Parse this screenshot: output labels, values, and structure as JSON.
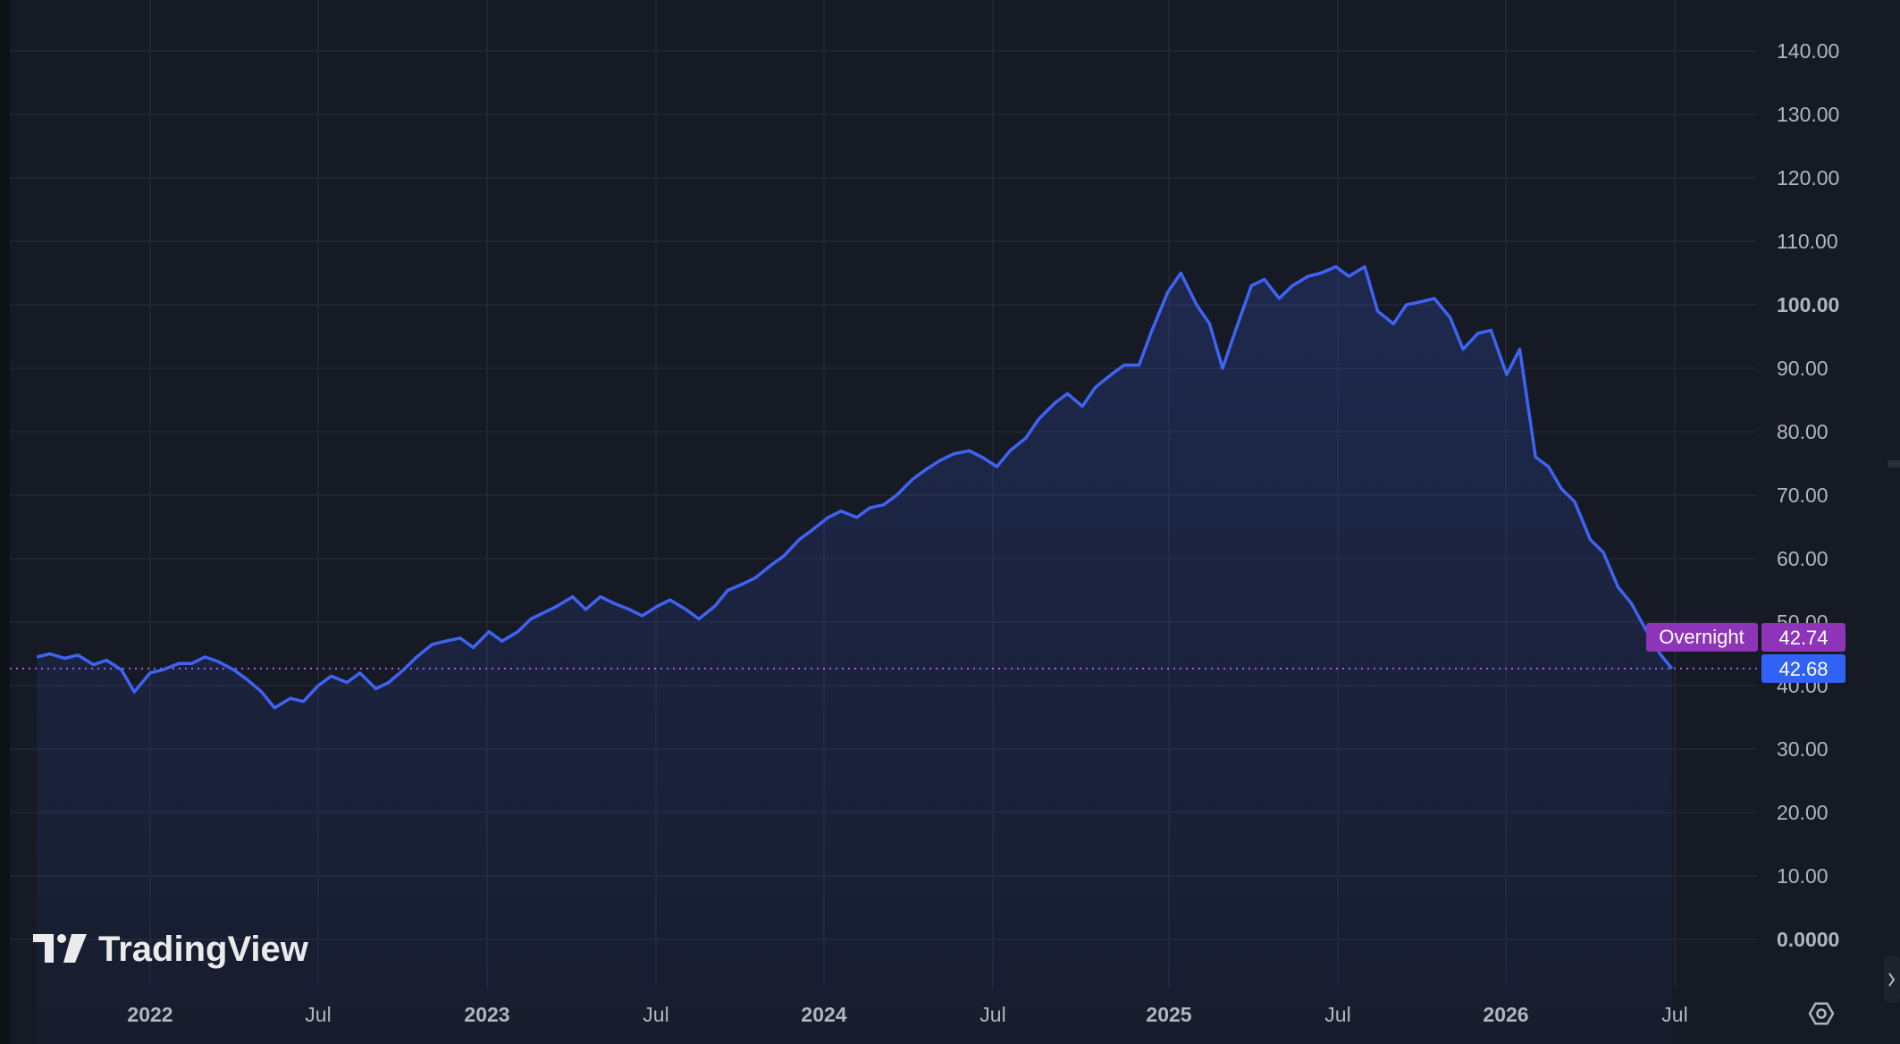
{
  "app": {
    "watermark": "TradingView"
  },
  "colors": {
    "background": "#161a25",
    "grid": "#222735",
    "line": "#3f63f2",
    "area_fill_top": "rgba(63,99,242,0.20)",
    "area_fill_bottom": "rgba(63,99,242,0.04)",
    "axis_text": "#b2b5be",
    "overnight_badge": "#8e34b8",
    "last_price_badge": "#2f62f5",
    "dotted_line": "#9c5ce8"
  },
  "chart_data": {
    "type": "area",
    "x_tick_labels": [
      "2022",
      "Jul",
      "2023",
      "Jul",
      "2024",
      "Jul",
      "2025",
      "Jul",
      "2026",
      "Jul"
    ],
    "x_tick_major": [
      true,
      false,
      true,
      false,
      true,
      false,
      true,
      false,
      true,
      false
    ],
    "y_tick_labels": [
      "0.0000",
      "10.00",
      "20.00",
      "30.00",
      "40.00",
      "50.00",
      "60.00",
      "70.00",
      "80.00",
      "90.00",
      "100.00",
      "110.00",
      "120.00",
      "130.00",
      "140.00"
    ],
    "ylim": [
      0,
      140
    ],
    "xlim": [
      "2021-09-01",
      "2026-10-15"
    ],
    "grid": true,
    "series": [
      {
        "type": "area",
        "x": [
          "2021-09-01",
          "2021-09-15",
          "2021-10-01",
          "2021-10-15",
          "2021-11-01",
          "2021-11-15",
          "2021-12-01",
          "2021-12-15",
          "2022-01-01",
          "2022-01-15",
          "2022-02-01",
          "2022-02-15",
          "2022-03-01",
          "2022-03-15",
          "2022-04-01",
          "2022-04-15",
          "2022-05-01",
          "2022-05-15",
          "2022-06-01",
          "2022-06-15",
          "2022-07-01",
          "2022-07-15",
          "2022-08-01",
          "2022-08-15",
          "2022-09-01",
          "2022-09-15",
          "2022-10-01",
          "2022-10-15",
          "2022-11-01",
          "2022-11-15",
          "2022-12-01",
          "2022-12-15",
          "2023-01-01",
          "2023-01-15",
          "2023-02-01",
          "2023-02-15",
          "2023-03-01",
          "2023-03-15",
          "2023-04-01",
          "2023-04-15",
          "2023-05-01",
          "2023-05-15",
          "2023-06-01",
          "2023-06-15",
          "2023-07-01",
          "2023-07-15",
          "2023-08-01",
          "2023-08-15",
          "2023-09-01",
          "2023-09-15",
          "2023-10-01",
          "2023-10-15",
          "2023-11-01",
          "2023-11-15",
          "2023-12-01",
          "2023-12-15",
          "2024-01-01",
          "2024-01-15",
          "2024-02-01",
          "2024-02-15",
          "2024-03-01",
          "2024-03-15",
          "2024-04-01",
          "2024-04-15",
          "2024-05-01",
          "2024-05-15",
          "2024-06-01",
          "2024-06-15",
          "2024-07-01",
          "2024-07-15",
          "2024-08-01",
          "2024-08-15",
          "2024-09-01",
          "2024-09-15",
          "2024-10-01",
          "2024-10-15",
          "2024-11-01",
          "2024-11-15",
          "2024-12-01",
          "2024-12-15",
          "2025-01-01",
          "2025-01-15",
          "2025-02-01",
          "2025-02-15",
          "2025-03-01",
          "2025-03-15",
          "2025-04-01",
          "2025-04-15",
          "2025-05-01",
          "2025-05-15",
          "2025-06-01",
          "2025-06-15",
          "2025-07-01",
          "2025-07-15",
          "2025-08-01",
          "2025-08-15",
          "2025-09-01",
          "2025-09-15",
          "2025-10-01",
          "2025-10-15",
          "2025-11-01",
          "2025-11-15",
          "2025-12-01",
          "2025-12-15",
          "2026-01-01",
          "2026-01-15",
          "2026-02-01",
          "2026-02-15",
          "2026-03-01",
          "2026-03-15",
          "2026-04-01",
          "2026-04-15",
          "2026-05-01",
          "2026-05-15",
          "2026-06-01",
          "2026-06-15",
          "2026-06-28"
        ],
        "values": [
          44.5,
          45.0,
          44.3,
          44.8,
          43.3,
          44.0,
          42.5,
          39.0,
          42.0,
          42.5,
          43.5,
          43.5,
          44.5,
          43.8,
          42.5,
          41.0,
          39.0,
          36.5,
          38.0,
          37.5,
          40.0,
          41.5,
          40.5,
          42.0,
          39.5,
          40.5,
          42.5,
          44.5,
          46.5,
          47.0,
          47.5,
          46.0,
          48.5,
          47.0,
          48.5,
          50.5,
          51.5,
          52.5,
          54.0,
          52.0,
          54.0,
          53.0,
          52.0,
          51.0,
          52.5,
          53.5,
          52.0,
          50.5,
          52.5,
          55.0,
          56.0,
          57.0,
          59.0,
          60.5,
          63.0,
          64.5,
          66.5,
          67.5,
          66.5,
          68.0,
          68.5,
          70.0,
          72.5,
          74.0,
          75.5,
          76.5,
          77.0,
          76.0,
          74.5,
          77.0,
          79.0,
          82.0,
          84.5,
          86.0,
          84.0,
          87.0,
          89.0,
          90.5,
          90.5,
          96.0,
          102.0,
          105.0,
          100.0,
          97.0,
          90.0,
          96.0,
          103.0,
          104.0,
          101.0,
          103.0,
          104.5,
          105.0,
          106.0,
          104.5,
          106.0,
          99.0,
          97.0,
          100.0,
          100.5,
          101.0,
          98.0,
          93.0,
          95.5,
          96.0,
          89.0,
          93.0,
          76.0,
          74.5,
          71.0,
          69.0,
          63.0,
          61.0,
          55.5,
          53.0,
          48.5,
          45.0,
          42.68
        ]
      }
    ],
    "overnight_label": "Overnight",
    "overnight_value": "42.74",
    "last_value": "42.68",
    "last_value_numeric": 42.68
  }
}
